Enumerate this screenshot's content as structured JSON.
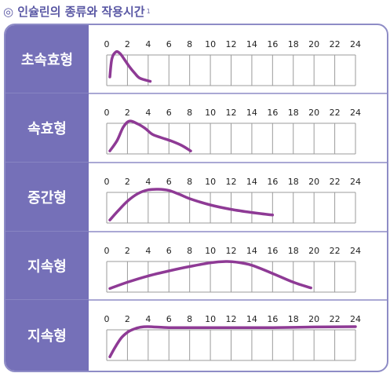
{
  "title": {
    "text": "◎ 인슐린의 종류와 작용시간",
    "sup": "1"
  },
  "colors": {
    "label_bg": "#7570b8",
    "curve": "#8e3a95",
    "grid": "#9b9b9b",
    "frame": "#8e8cc6",
    "title": "#5b59a5"
  },
  "chart_data": [
    {
      "type": "line",
      "label": "초속효형",
      "x_ticks": [
        0,
        2,
        4,
        6,
        8,
        10,
        12,
        14,
        16,
        18,
        20,
        22,
        24
      ],
      "xlim": [
        0,
        24
      ],
      "ylim": [
        0,
        1
      ],
      "x": [
        0.3,
        0.5,
        0.9,
        1.3,
        1.7,
        2.2,
        2.7,
        3.2,
        4.2
      ],
      "y": [
        0.2,
        0.78,
        1.0,
        0.94,
        0.76,
        0.52,
        0.32,
        0.16,
        0.06
      ]
    },
    {
      "type": "line",
      "label": "속효형",
      "x_ticks": [
        0,
        2,
        4,
        6,
        8,
        10,
        12,
        14,
        16,
        18,
        20,
        22,
        24
      ],
      "xlim": [
        0,
        24
      ],
      "ylim": [
        0,
        1
      ],
      "x": [
        0.3,
        1.0,
        1.6,
        2.2,
        3.0,
        3.7,
        4.4,
        5.2,
        6.2,
        7.2,
        8.1
      ],
      "y": [
        0.02,
        0.35,
        0.78,
        0.97,
        0.88,
        0.74,
        0.55,
        0.45,
        0.34,
        0.2,
        0.02
      ]
    },
    {
      "type": "line",
      "label": "중간형",
      "x_ticks": [
        0,
        2,
        4,
        6,
        8,
        10,
        12,
        14,
        16,
        18,
        20,
        22,
        24
      ],
      "xlim": [
        0,
        24
      ],
      "ylim": [
        0,
        1
      ],
      "x": [
        0.3,
        1.0,
        2.0,
        3.0,
        4.0,
        5.0,
        6.0,
        7.0,
        8.0,
        10.0,
        12.0,
        14.0,
        16.0
      ],
      "y": [
        0.02,
        0.28,
        0.62,
        0.86,
        0.98,
        1.0,
        0.96,
        0.84,
        0.7,
        0.5,
        0.36,
        0.26,
        0.18
      ]
    },
    {
      "type": "line",
      "label": "지속형",
      "x_ticks": [
        0,
        2,
        4,
        6,
        8,
        10,
        12,
        14,
        16,
        18,
        20,
        22,
        24
      ],
      "xlim": [
        0,
        24
      ],
      "ylim": [
        0,
        1
      ],
      "x": [
        0.3,
        2.0,
        4.0,
        6.0,
        8.0,
        10.0,
        11.5,
        12.5,
        14.0,
        16.0,
        18.0,
        19.7
      ],
      "y": [
        0.04,
        0.24,
        0.44,
        0.6,
        0.74,
        0.86,
        0.9,
        0.88,
        0.78,
        0.52,
        0.24,
        0.06
      ]
    },
    {
      "type": "line",
      "label": "지속형",
      "x_ticks": [
        0,
        2,
        4,
        6,
        8,
        10,
        12,
        14,
        16,
        18,
        20,
        22,
        24
      ],
      "xlim": [
        0,
        24
      ],
      "ylim": [
        0,
        1
      ],
      "x": [
        0.3,
        0.8,
        1.4,
        2.0,
        2.6,
        3.2,
        4.0,
        6.0,
        8.0,
        12.0,
        16.0,
        20.0,
        24.0
      ],
      "y": [
        0.04,
        0.34,
        0.64,
        0.82,
        0.92,
        0.98,
        1.0,
        0.97,
        0.97,
        0.97,
        0.97,
        0.99,
        1.0
      ]
    }
  ]
}
